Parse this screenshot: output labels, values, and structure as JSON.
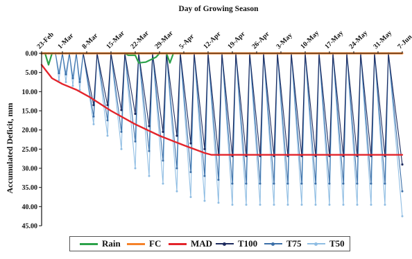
{
  "chart_data": {
    "type": "line",
    "title": "Day of Growing Season",
    "xlabel": "",
    "ylabel": "Accumulated Deficit, mm",
    "x_tick_labels": [
      "23-Feb",
      "1-Mar",
      "8-Mar",
      "15-Mar",
      "22-Mar",
      "29-Mar",
      "5-Apr",
      "12-Apr",
      "19-Apr",
      "26-Apr",
      "3-May",
      "10-May",
      "17-May",
      "24-May",
      "31-May",
      "7-Jun"
    ],
    "x_tick_day_index": [
      0,
      6,
      13,
      20,
      27,
      34,
      41,
      48,
      55,
      62,
      69,
      76,
      83,
      90,
      97,
      104
    ],
    "y_tick_labels": [
      "0.00",
      "5.00",
      "10.00",
      "15.00",
      "20.00",
      "25.00",
      "30.00",
      "35.00",
      "40.00",
      "45.00"
    ],
    "ylim": [
      0,
      45
    ],
    "y_inverted": true,
    "grid": false,
    "legend_position": "bottom",
    "series": [
      {
        "name": "Rain",
        "color": "#2ca24a",
        "points": [
          [
            0,
            0
          ],
          [
            1,
            0
          ],
          [
            2,
            3.0
          ],
          [
            3,
            0
          ],
          [
            24,
            0
          ],
          [
            25,
            0.5
          ],
          [
            27,
            0.5
          ],
          [
            28,
            2.5
          ],
          [
            30,
            2.3
          ],
          [
            33,
            1.0
          ],
          [
            34,
            0
          ],
          [
            36,
            0
          ],
          [
            37,
            2.5
          ],
          [
            38,
            0
          ],
          [
            104,
            0
          ]
        ]
      },
      {
        "name": "FC",
        "color": "#f5822a",
        "points": [
          [
            0,
            0
          ],
          [
            104,
            0
          ]
        ]
      },
      {
        "name": "MAD",
        "color": "#e3242b",
        "points": [
          [
            0,
            3.0
          ],
          [
            1,
            4.2
          ],
          [
            3,
            6.5
          ],
          [
            6,
            8.0
          ],
          [
            10,
            9.5
          ],
          [
            14,
            11.5
          ],
          [
            20,
            15.0
          ],
          [
            27,
            18.5
          ],
          [
            34,
            21.5
          ],
          [
            41,
            24.0
          ],
          [
            47,
            26.0
          ],
          [
            49,
            26.5
          ],
          [
            55,
            26.5
          ],
          [
            104,
            26.5
          ]
        ]
      },
      {
        "name": "T100",
        "color": "#1c2a5e",
        "points": [
          [
            0,
            0
          ],
          [
            1,
            0
          ],
          [
            2,
            0
          ],
          [
            3,
            0
          ],
          [
            4,
            0
          ],
          [
            5,
            0
          ],
          [
            6,
            0
          ],
          [
            7,
            0
          ],
          [
            8,
            0
          ],
          [
            9,
            0
          ],
          [
            10,
            0
          ],
          [
            11,
            0
          ],
          [
            12,
            0
          ],
          [
            15,
            13.5
          ],
          [
            16,
            0
          ],
          [
            19,
            13.5
          ],
          [
            20,
            0
          ],
          [
            23,
            14.8
          ],
          [
            24,
            0
          ],
          [
            27,
            15.8
          ],
          [
            28,
            0
          ],
          [
            31,
            19.0
          ],
          [
            32,
            0
          ],
          [
            35,
            20.5
          ],
          [
            36,
            0
          ],
          [
            39,
            21.5
          ],
          [
            40,
            0
          ],
          [
            43,
            23.5
          ],
          [
            44,
            0
          ],
          [
            47,
            25.0
          ],
          [
            48,
            0
          ],
          [
            51,
            26.5
          ],
          [
            52,
            0
          ],
          [
            55,
            26.8
          ],
          [
            56,
            0
          ],
          [
            59,
            26.8
          ],
          [
            60,
            0
          ],
          [
            63,
            26.8
          ],
          [
            64,
            0
          ],
          [
            67,
            26.8
          ],
          [
            68,
            0
          ],
          [
            71,
            26.8
          ],
          [
            72,
            0
          ],
          [
            75,
            26.8
          ],
          [
            76,
            0
          ],
          [
            79,
            26.8
          ],
          [
            80,
            0
          ],
          [
            83,
            26.8
          ],
          [
            84,
            0
          ],
          [
            87,
            26.8
          ],
          [
            88,
            0
          ],
          [
            91,
            26.8
          ],
          [
            92,
            0
          ],
          [
            95,
            26.8
          ],
          [
            96,
            0
          ],
          [
            99,
            26.8
          ],
          [
            100,
            0
          ],
          [
            104,
            29.0
          ]
        ]
      },
      {
        "name": "T75",
        "color": "#3b6fa8",
        "points": [
          [
            0,
            0
          ],
          [
            1,
            0
          ],
          [
            2,
            0
          ],
          [
            3,
            0
          ],
          [
            4,
            0
          ],
          [
            5,
            5.2
          ],
          [
            6,
            0
          ],
          [
            7,
            5.5
          ],
          [
            8,
            0
          ],
          [
            9,
            6.5
          ],
          [
            10,
            0
          ],
          [
            11,
            7.5
          ],
          [
            12,
            0
          ],
          [
            15,
            16.5
          ],
          [
            16,
            0
          ],
          [
            19,
            17.5
          ],
          [
            20,
            0
          ],
          [
            23,
            20.5
          ],
          [
            24,
            0
          ],
          [
            27,
            23.0
          ],
          [
            28,
            0
          ],
          [
            31,
            25.5
          ],
          [
            32,
            0
          ],
          [
            35,
            28.0
          ],
          [
            36,
            0
          ],
          [
            39,
            30.0
          ],
          [
            40,
            0
          ],
          [
            43,
            31.0
          ],
          [
            44,
            0
          ],
          [
            47,
            32.0
          ],
          [
            48,
            0
          ],
          [
            51,
            33.0
          ],
          [
            52,
            0
          ],
          [
            55,
            34.0
          ],
          [
            56,
            0
          ],
          [
            59,
            34.0
          ],
          [
            60,
            0
          ],
          [
            63,
            34.0
          ],
          [
            64,
            0
          ],
          [
            67,
            34.0
          ],
          [
            68,
            0
          ],
          [
            71,
            34.0
          ],
          [
            72,
            0
          ],
          [
            75,
            34.0
          ],
          [
            76,
            0
          ],
          [
            79,
            34.0
          ],
          [
            80,
            0
          ],
          [
            83,
            34.0
          ],
          [
            84,
            0
          ],
          [
            87,
            34.0
          ],
          [
            88,
            0
          ],
          [
            91,
            34.0
          ],
          [
            92,
            0
          ],
          [
            95,
            34.0
          ],
          [
            96,
            0
          ],
          [
            99,
            34.0
          ],
          [
            100,
            0
          ],
          [
            104,
            36.0
          ]
        ]
      },
      {
        "name": "T50",
        "color": "#8fbde3",
        "points": [
          [
            0,
            0
          ],
          [
            1,
            0
          ],
          [
            2,
            0
          ],
          [
            3,
            0
          ],
          [
            4,
            0
          ],
          [
            5,
            7.0
          ],
          [
            6,
            0
          ],
          [
            7,
            7.5
          ],
          [
            8,
            0
          ],
          [
            9,
            8.5
          ],
          [
            10,
            0
          ],
          [
            11,
            9.5
          ],
          [
            12,
            0
          ],
          [
            15,
            18.5
          ],
          [
            16,
            0
          ],
          [
            19,
            21.5
          ],
          [
            20,
            0
          ],
          [
            23,
            25.0
          ],
          [
            24,
            0
          ],
          [
            27,
            30.0
          ],
          [
            28,
            0
          ],
          [
            31,
            32.0
          ],
          [
            32,
            0
          ],
          [
            35,
            34.0
          ],
          [
            36,
            0
          ],
          [
            39,
            36.0
          ],
          [
            40,
            0
          ],
          [
            43,
            37.5
          ],
          [
            44,
            0
          ],
          [
            47,
            38.5
          ],
          [
            48,
            0
          ],
          [
            51,
            39.0
          ],
          [
            52,
            0
          ],
          [
            55,
            39.5
          ],
          [
            56,
            0
          ],
          [
            59,
            39.5
          ],
          [
            60,
            0
          ],
          [
            63,
            39.5
          ],
          [
            64,
            0
          ],
          [
            67,
            39.5
          ],
          [
            68,
            0
          ],
          [
            71,
            39.5
          ],
          [
            72,
            0
          ],
          [
            75,
            39.5
          ],
          [
            76,
            0
          ],
          [
            79,
            39.5
          ],
          [
            80,
            0
          ],
          [
            83,
            39.5
          ],
          [
            84,
            0
          ],
          [
            87,
            39.5
          ],
          [
            88,
            0
          ],
          [
            91,
            39.5
          ],
          [
            92,
            0
          ],
          [
            95,
            39.5
          ],
          [
            96,
            0
          ],
          [
            99,
            39.5
          ],
          [
            100,
            0
          ],
          [
            104,
            42.5
          ]
        ]
      }
    ]
  }
}
